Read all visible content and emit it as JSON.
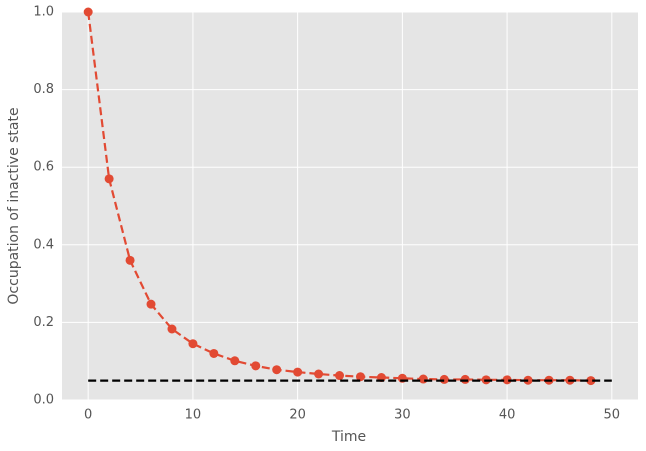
{
  "chart_data": {
    "type": "line",
    "xlabel": "Time",
    "ylabel": "Occupation of inactive state",
    "xlim": [
      -2.5,
      52.5
    ],
    "ylim": [
      0,
      1
    ],
    "xticks": [
      0,
      10,
      20,
      30,
      40,
      50
    ],
    "yticks": [
      {
        "value": 0,
        "label": "0.0"
      },
      0.2,
      0.4,
      0.6,
      0.8,
      {
        "value": 1,
        "label": "1.0"
      }
    ],
    "grid": true,
    "background": "#e5e5e5",
    "series": [
      {
        "color": "#e24a33",
        "style": "dashed",
        "marker": true,
        "x": [
          0,
          2,
          4,
          6,
          8,
          10,
          12,
          14,
          16,
          18,
          20,
          22,
          24,
          26,
          28,
          30,
          32,
          34,
          36,
          38,
          40,
          42,
          44,
          46,
          48
        ],
        "values": [
          1.0,
          0.57,
          0.36,
          0.247,
          0.183,
          0.145,
          0.12,
          0.101,
          0.088,
          0.078,
          0.072,
          0.067,
          0.063,
          0.06,
          0.058,
          0.056,
          0.054,
          0.053,
          0.053,
          0.052,
          0.052,
          0.051,
          0.051,
          0.051,
          0.05
        ]
      },
      {
        "color": "#000000",
        "style": "dashed",
        "marker": false,
        "x": [
          0,
          50
        ],
        "values": [
          0.05,
          0.05
        ]
      }
    ]
  }
}
